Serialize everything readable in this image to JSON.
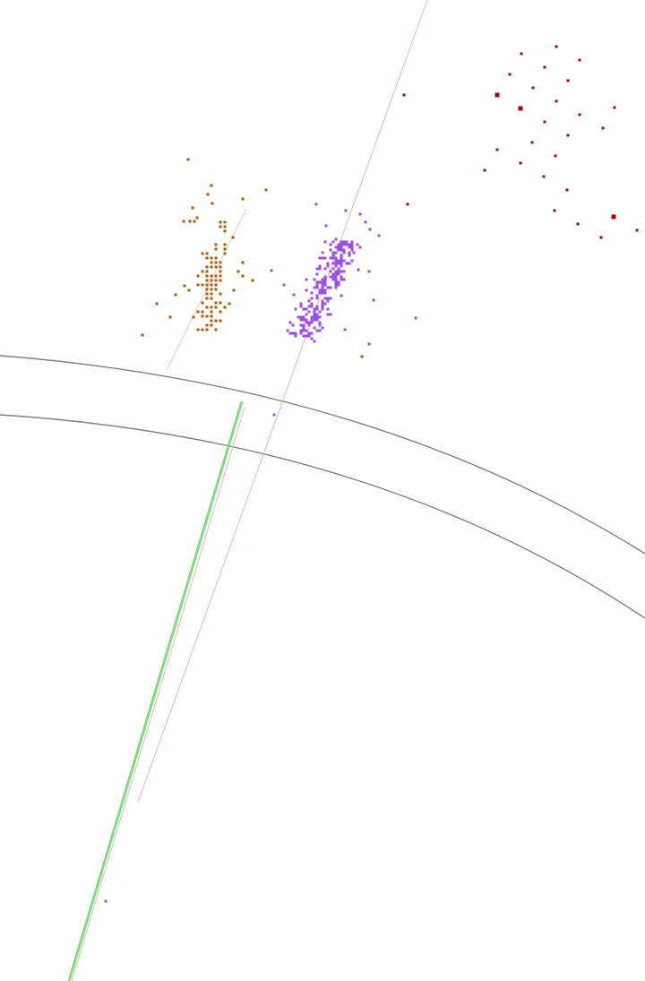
{
  "scene": {
    "background": "#ffffff",
    "colors": {
      "brown_cluster": "#b35900",
      "purple_cluster": "#9d4ded",
      "red_cluster": "#b30000",
      "green_track": "#7be07b",
      "pink_track": "#f2b8c0",
      "gray_arc": "#808080"
    }
  }
}
